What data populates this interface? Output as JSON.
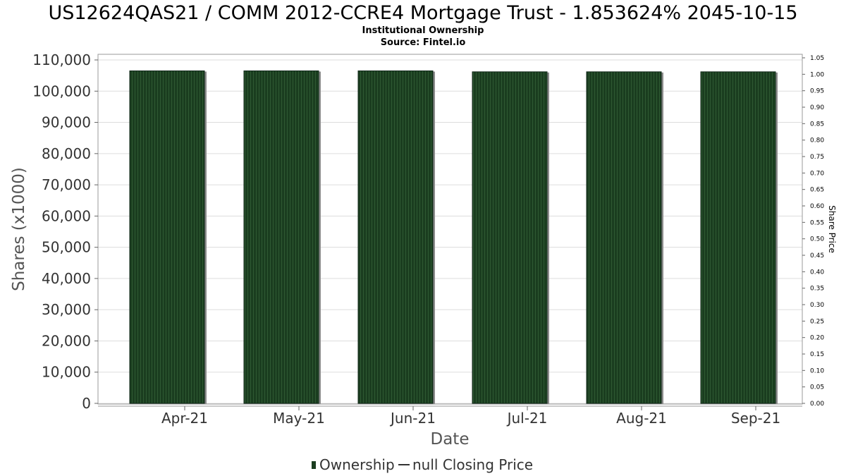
{
  "chart_data": {
    "type": "bar",
    "title": "US12624QAS21 / COMM 2012-CCRE4 Mortgage Trust - 1.853624% 2045-10-15",
    "subtitle": "Institutional Ownership",
    "source": "Source: Fintel.io",
    "xlabel": "Date",
    "ylabel": "Shares (x1000)",
    "y2label": "Share Price",
    "categories": [
      "Apr-21",
      "May-21",
      "Jun-21",
      "Jul-21",
      "Aug-21",
      "Sep-21"
    ],
    "series": [
      {
        "name": "Ownership",
        "values": [
          106500,
          106500,
          106500,
          106200,
          106200,
          106200
        ]
      }
    ],
    "ylim": [
      0,
      110000
    ],
    "y_ticks": [
      "0",
      "10,000",
      "20,000",
      "30,000",
      "40,000",
      "50,000",
      "60,000",
      "70,000",
      "80,000",
      "90,000",
      "100,000",
      "110,000"
    ],
    "y2lim": [
      0,
      1.05
    ],
    "y2_ticks": [
      "0.00",
      "0.05",
      "0.10",
      "0.15",
      "0.20",
      "0.25",
      "0.30",
      "0.35",
      "0.40",
      "0.45",
      "0.50",
      "0.55",
      "0.60",
      "0.65",
      "0.70",
      "0.75",
      "0.80",
      "0.85",
      "0.90",
      "0.95",
      "1.00",
      "1.05"
    ],
    "grid": true,
    "legend": {
      "placement": "bottom",
      "entries": [
        {
          "label": "Ownership",
          "marker": "bar"
        },
        {
          "label": "null Closing Price",
          "marker": "line"
        }
      ]
    },
    "colors": {
      "bar": "#1a3d1f",
      "bar_stripe": "#2f5a33",
      "bar_shadow": "#8c8c8c",
      "grid": "#dddddd",
      "axis": "#888888"
    }
  }
}
